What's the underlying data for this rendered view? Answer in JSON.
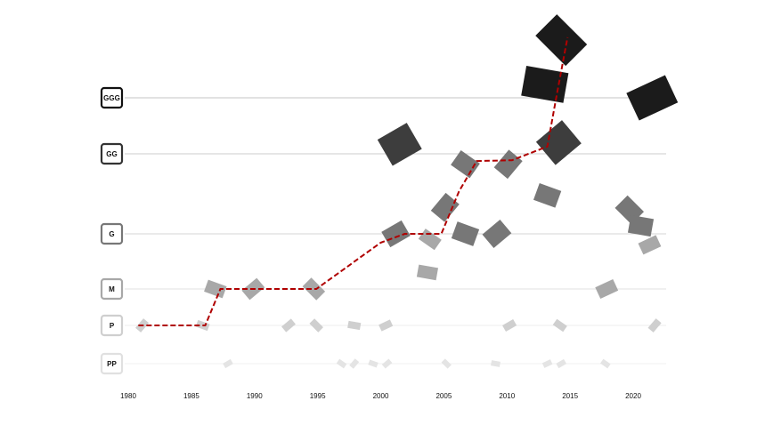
{
  "chart_data": {
    "type": "line",
    "ycategories": [
      "PP",
      "P",
      "M",
      "G",
      "GG",
      "GGG"
    ],
    "level_colors": [
      "#e4e4e4",
      "#cfcfcf",
      "#a8a8a8",
      "#777777",
      "#3d3d3d",
      "#1b1b1b"
    ],
    "xlim": [
      1980,
      2022
    ],
    "xticks": [
      1980,
      1985,
      1990,
      1995,
      2000,
      2005,
      2010,
      2015,
      2020
    ],
    "grid": true,
    "series": [
      {
        "color": "#b00000",
        "x": [
          1980.8,
          1986.1,
          1987.3,
          1994.9,
          2000.0,
          2001.9,
          2004.8,
          2006.2,
          2007.6,
          2010.4,
          2013.2,
          2013.9,
          2014.8
        ],
        "values": [
          1,
          1,
          2,
          2,
          2.84,
          3,
          3,
          3.53,
          3.91,
          3.92,
          4.13,
          5,
          6.08
        ]
      }
    ],
    "items": {
      "x": [
        1987.9,
        1996.9,
        1997.9,
        1999.4,
        2000.5,
        2005.2,
        2009.1,
        2013.2,
        2014.3,
        2017.8,
        1981.1,
        1985.9,
        1992.7,
        1994.9,
        1997.9,
        2000.4,
        2010.2,
        2014.2,
        2021.7,
        1986.9,
        1989.9,
        1994.7,
        2003.7,
        2017.9,
        2001.2,
        2003.9,
        2005.1,
        2006.7,
        2009.2,
        2019.7,
        2020.6,
        2021.3,
        2001.5,
        2006.7,
        2010.1,
        2013.2,
        2014.1,
        2014.3,
        2013.0,
        2021.5
      ],
      "values": [
        0,
        0,
        0,
        0,
        0,
        0,
        0,
        0,
        0,
        0,
        1,
        1,
        1,
        1,
        1,
        1,
        1,
        1,
        1,
        2,
        2,
        2,
        2.3,
        2,
        3,
        2.9,
        3.33,
        3,
        3,
        3.3,
        3.1,
        2.8,
        4.17,
        3.87,
        3.87,
        3.48,
        4.2,
        6.03,
        5.24,
        5
      ]
    }
  }
}
